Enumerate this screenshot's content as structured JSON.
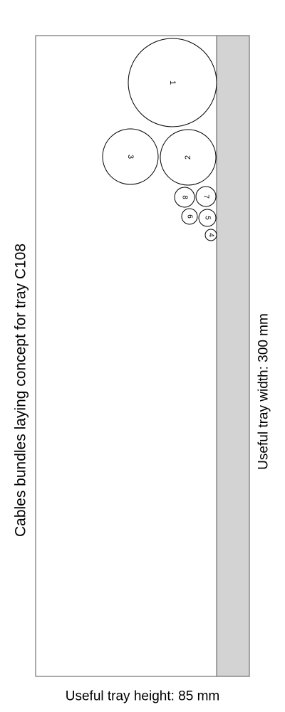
{
  "title": "Cables bundles laying concept for tray C108",
  "tray_width_label": "Useful tray width: 300 mm",
  "tray_height_label": "Useful tray height: 85 mm",
  "colors": {
    "background": "#ffffff",
    "tray_border": "#555555",
    "tray_base": "#d3d3d3",
    "cable_stroke": "#000000"
  },
  "cables": [
    {
      "id": "1"
    },
    {
      "id": "2"
    },
    {
      "id": "3"
    },
    {
      "id": "4"
    },
    {
      "id": "5"
    },
    {
      "id": "6"
    },
    {
      "id": "7"
    },
    {
      "id": "8"
    }
  ]
}
